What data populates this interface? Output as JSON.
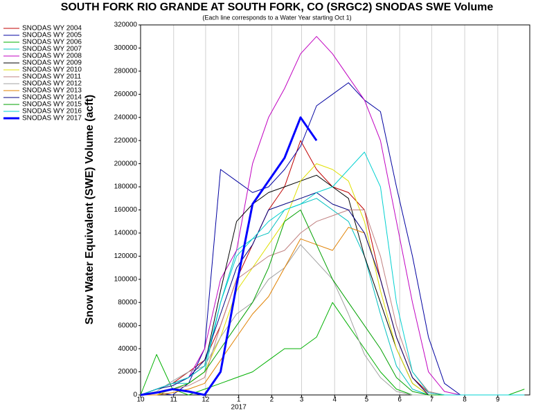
{
  "chart_data": {
    "type": "line",
    "title": "SOUTH FORK RIO GRANDE AT SOUTH FORK, CO (SRGC2) SNODAS SWE Volume",
    "subtitle": "(Each line corresponds to a Water Year starting Oct 1)",
    "y_label": "Snow Water Equivalent (SWE) Volume (acft)",
    "x_annotation": {
      "text": "2017",
      "x": 92
    },
    "xlim": [
      0,
      365
    ],
    "ylim": [
      0,
      320000
    ],
    "xticks": [
      {
        "value": 0,
        "label": "10"
      },
      {
        "value": 31,
        "label": "11"
      },
      {
        "value": 61,
        "label": "12"
      },
      {
        "value": 92,
        "label": "1"
      },
      {
        "value": 123,
        "label": "2"
      },
      {
        "value": 151,
        "label": "3"
      },
      {
        "value": 182,
        "label": "4"
      },
      {
        "value": 212,
        "label": "5"
      },
      {
        "value": 243,
        "label": "6"
      },
      {
        "value": 273,
        "label": "7"
      },
      {
        "value": 304,
        "label": "8"
      },
      {
        "value": 335,
        "label": "9"
      }
    ],
    "yticks": [
      0,
      20000,
      40000,
      60000,
      80000,
      100000,
      120000,
      140000,
      160000,
      180000,
      200000,
      220000,
      240000,
      260000,
      280000,
      300000,
      320000
    ],
    "grid": "x",
    "x": [
      0,
      15,
      30,
      45,
      60,
      75,
      90,
      105,
      120,
      135,
      150,
      165,
      180,
      195,
      210,
      225,
      240,
      255,
      270,
      285,
      300,
      315,
      330,
      345,
      360
    ],
    "series": [
      {
        "name": "SNODAS WY 2004",
        "color": "#c00000",
        "values": [
          0,
          5000,
          10000,
          20000,
          30000,
          60000,
          100000,
          130000,
          160000,
          180000,
          220000,
          195000,
          180000,
          175000,
          160000,
          100000,
          50000,
          15000,
          2000,
          0,
          0,
          0,
          0,
          0,
          0
        ]
      },
      {
        "name": "SNODAS WY 2005",
        "color": "#0000a0",
        "values": [
          0,
          2000,
          0,
          10000,
          40000,
          195000,
          185000,
          175000,
          180000,
          195000,
          215000,
          250000,
          260000,
          270000,
          255000,
          245000,
          180000,
          120000,
          50000,
          10000,
          0,
          0,
          0,
          0,
          0
        ]
      },
      {
        "name": "SNODAS WY 2006",
        "color": "#00b000",
        "values": [
          0,
          35000,
          5000,
          0,
          5000,
          10000,
          15000,
          20000,
          30000,
          40000,
          40000,
          50000,
          80000,
          60000,
          40000,
          20000,
          5000,
          0,
          0,
          0,
          0,
          0,
          0,
          0,
          5000
        ]
      },
      {
        "name": "SNODAS WY 2007",
        "color": "#00c0c0",
        "values": [
          0,
          5000,
          10000,
          10000,
          20000,
          80000,
          125000,
          135000,
          140000,
          160000,
          165000,
          170000,
          160000,
          150000,
          120000,
          70000,
          25000,
          5000,
          0,
          0,
          0,
          0,
          0,
          0,
          0
        ]
      },
      {
        "name": "SNODAS WY 2008",
        "color": "#c000c0",
        "values": [
          0,
          5000,
          10000,
          15000,
          40000,
          100000,
          125000,
          200000,
          240000,
          265000,
          295000,
          310000,
          295000,
          275000,
          255000,
          220000,
          150000,
          80000,
          20000,
          3000,
          0,
          0,
          0,
          0,
          0
        ]
      },
      {
        "name": "SNODAS WY 2009",
        "color": "#000000",
        "values": [
          0,
          5000,
          10000,
          15000,
          25000,
          90000,
          150000,
          165000,
          175000,
          180000,
          185000,
          190000,
          180000,
          170000,
          120000,
          80000,
          40000,
          10000,
          0,
          0,
          0,
          0,
          0,
          0,
          0
        ]
      },
      {
        "name": "SNODAS WY 2010",
        "color": "#e0e000",
        "values": [
          0,
          0,
          5000,
          10000,
          20000,
          50000,
          90000,
          110000,
          130000,
          150000,
          185000,
          200000,
          195000,
          185000,
          150000,
          90000,
          40000,
          10000,
          0,
          0,
          0,
          0,
          0,
          0,
          0
        ]
      },
      {
        "name": "SNODAS WY 2011",
        "color": "#c08080",
        "values": [
          0,
          2000,
          5000,
          8000,
          15000,
          60000,
          100000,
          110000,
          120000,
          125000,
          140000,
          150000,
          155000,
          160000,
          160000,
          120000,
          60000,
          20000,
          3000,
          0,
          0,
          0,
          0,
          0,
          0
        ]
      },
      {
        "name": "SNODAS WY 2012",
        "color": "#a0a0a0",
        "values": [
          0,
          3000,
          12000,
          20000,
          25000,
          50000,
          70000,
          80000,
          100000,
          110000,
          130000,
          115000,
          100000,
          70000,
          35000,
          15000,
          3000,
          0,
          0,
          0,
          0,
          0,
          0,
          0,
          0
        ]
      },
      {
        "name": "SNODAS WY 2013",
        "color": "#e08000",
        "values": [
          0,
          0,
          2000,
          5000,
          10000,
          30000,
          50000,
          70000,
          85000,
          110000,
          135000,
          130000,
          125000,
          145000,
          140000,
          100000,
          50000,
          15000,
          0,
          0,
          0,
          0,
          0,
          0,
          0
        ]
      },
      {
        "name": "SNODAS WY 2014",
        "color": "#000080",
        "values": [
          0,
          5000,
          8000,
          15000,
          30000,
          70000,
          110000,
          130000,
          160000,
          165000,
          170000,
          175000,
          165000,
          160000,
          140000,
          100000,
          50000,
          15000,
          0,
          0,
          0,
          0,
          0,
          0,
          0
        ]
      },
      {
        "name": "SNODAS WY 2015",
        "color": "#00a000",
        "values": [
          0,
          2000,
          5000,
          10000,
          20000,
          40000,
          60000,
          80000,
          110000,
          150000,
          160000,
          130000,
          100000,
          80000,
          60000,
          40000,
          15000,
          3000,
          0,
          0,
          0,
          0,
          0,
          0,
          0
        ]
      },
      {
        "name": "SNODAS WY 2016",
        "color": "#00d0d0",
        "values": [
          0,
          5000,
          10000,
          15000,
          25000,
          80000,
          120000,
          135000,
          150000,
          160000,
          165000,
          175000,
          180000,
          195000,
          210000,
          180000,
          80000,
          20000,
          2000,
          0,
          0,
          0,
          0,
          0,
          0
        ]
      },
      {
        "name": "SNODAS WY 2017",
        "color": "#0000ff",
        "line_width": 3,
        "values": [
          0,
          2000,
          5000,
          3000,
          0,
          20000,
          95000,
          165000,
          185000,
          205000,
          240000,
          220000,
          null,
          null,
          null,
          null,
          null,
          null,
          null,
          null,
          null,
          null,
          null,
          null,
          null
        ]
      }
    ]
  }
}
